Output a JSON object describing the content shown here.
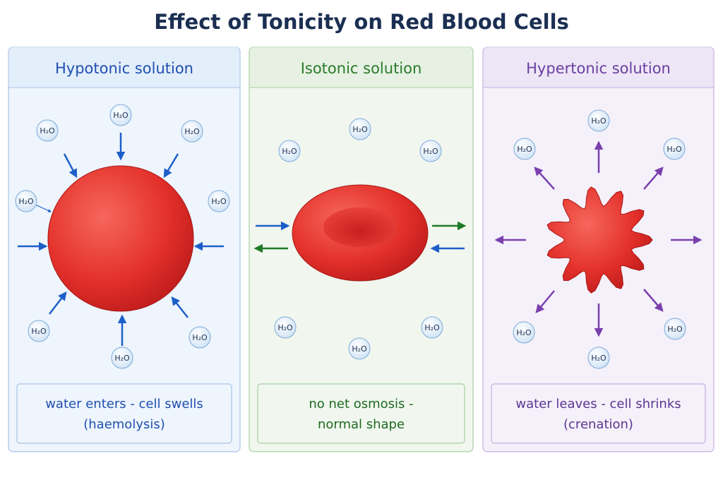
{
  "title": "Effect of Tonicity on Red Blood Cells",
  "molecule_label": "H₂O",
  "panels": [
    {
      "heading": "Hypotonic solution",
      "caption": [
        "water enters - cell swells",
        "(haemolysis)"
      ]
    },
    {
      "heading": "Isotonic solution",
      "caption": [
        "no net osmosis -",
        "normal shape"
      ]
    },
    {
      "heading": "Hypertonic solution",
      "caption": [
        "water leaves - cell shrinks",
        "(crenation)"
      ]
    }
  ]
}
